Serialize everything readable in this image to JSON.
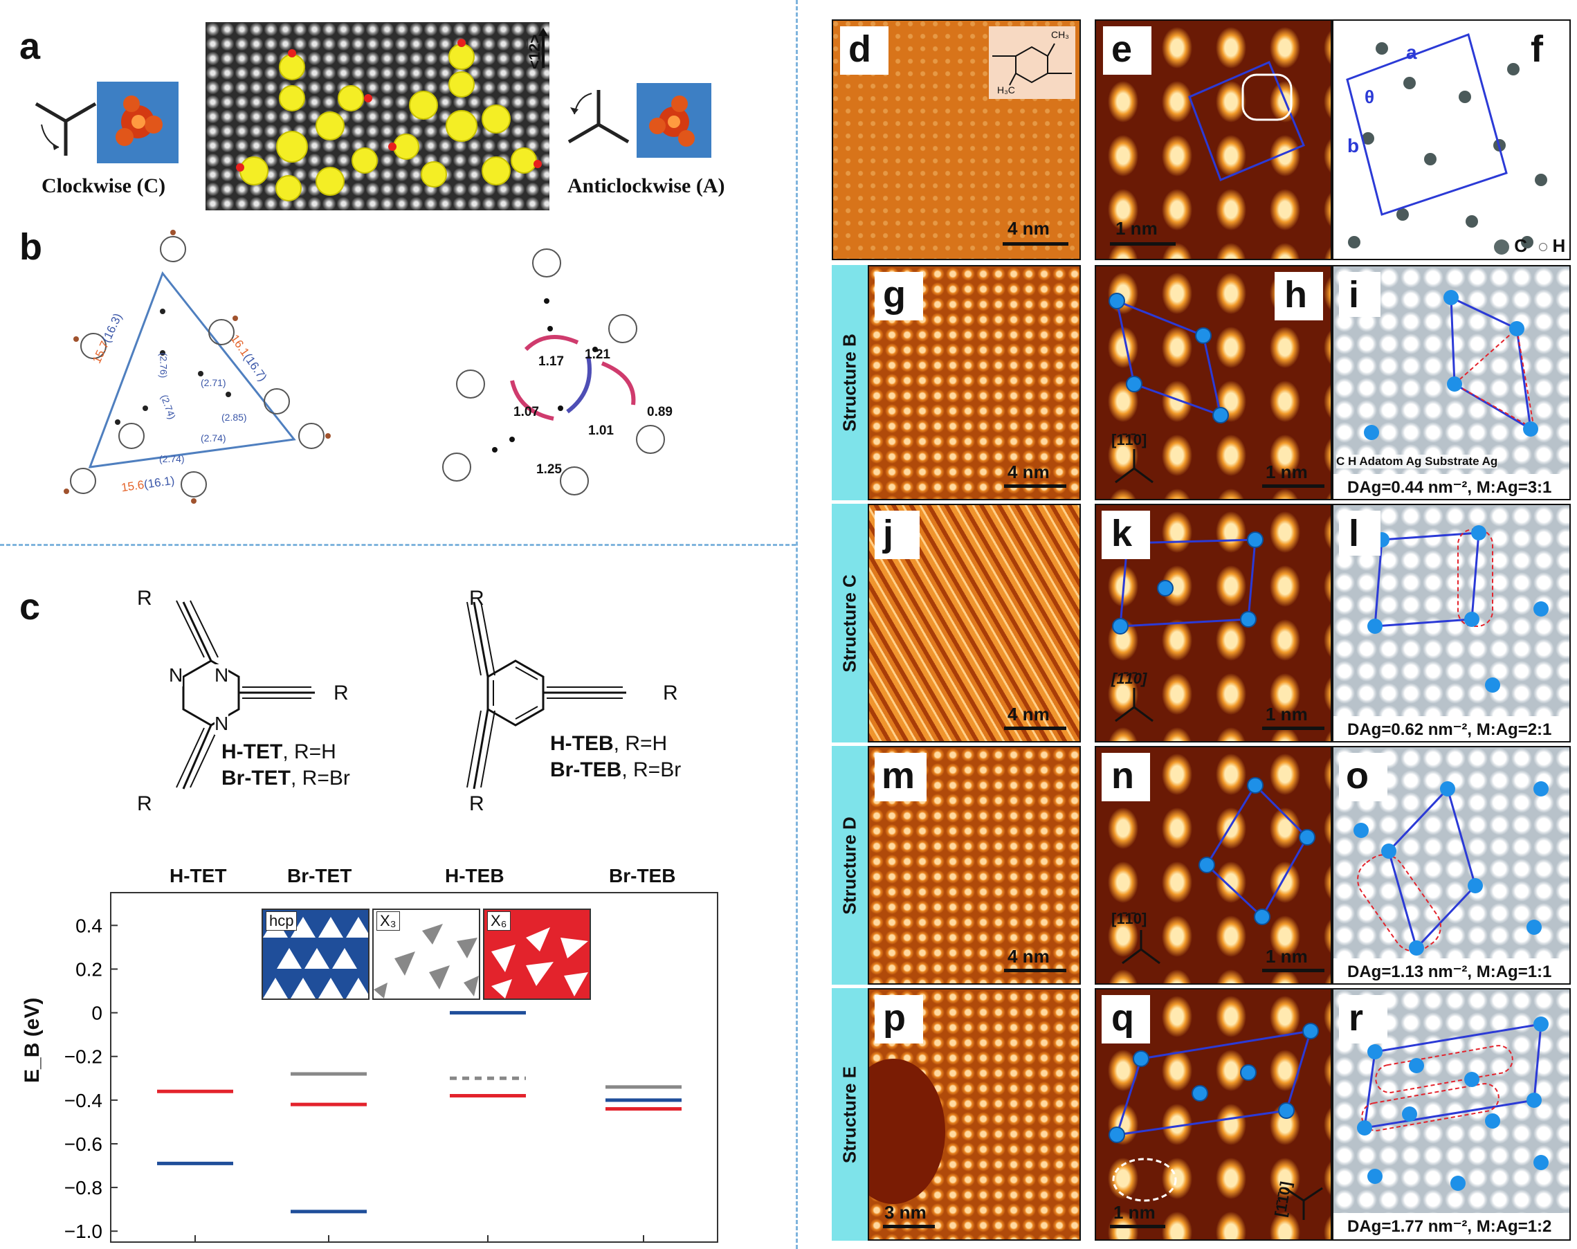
{
  "panel_labels": {
    "a": "a",
    "b": "b",
    "c": "c",
    "d": "d",
    "e": "e",
    "f": "f",
    "g": "g",
    "h": "h",
    "i": "i",
    "j": "j",
    "k": "k",
    "l": "l",
    "m": "m",
    "n": "n",
    "o": "o",
    "p": "p",
    "q": "q",
    "r": "r"
  },
  "panel_a": {
    "clockwise": "Clockwise (C)",
    "anticlockwise": "Anticlockwise (A)",
    "direction": "<12̅>"
  },
  "panel_b": {
    "left_lengths_red": [
      "15.7",
      "16.1",
      "15.6"
    ],
    "left_lengths_blue": [
      "(16.3)",
      "(16.7)",
      "(16.1)"
    ],
    "left_inner": [
      "(2.76)",
      "(2.71)",
      "(2.85)",
      "(2.74)",
      "(2.74)",
      "(2.74)"
    ],
    "right_values": [
      "1.17",
      "1.21",
      "0.89",
      "1.07",
      "1.01",
      "1.25"
    ]
  },
  "panel_c": {
    "left_mol_line1_bold": "H-TET",
    "left_mol_line1_rest": ", R=H",
    "left_mol_line2_bold": "Br-TET",
    "left_mol_line2_rest": ", R=Br",
    "right_mol_line1_bold": "H-TEB",
    "right_mol_line1_rest": ", R=H",
    "right_mol_line2_bold": "Br-TEB",
    "right_mol_line2_rest": ", R=Br",
    "atom_R": "R",
    "atom_N": "N",
    "inset_labels": [
      "hcp",
      "X₃",
      "X₆"
    ]
  },
  "chart_data": {
    "type": "line",
    "categories": [
      "H-TET",
      "Br-TET",
      "H-TEB",
      "Br-TEB"
    ],
    "ylabel": "E_B (eV)",
    "ylim": [
      -1.05,
      0.55
    ],
    "yticks": [
      0.4,
      0.2,
      0,
      -0.2,
      -0.4,
      -0.6,
      -0.8,
      -1.0
    ],
    "ytick_labels": [
      "0.4",
      "0.2",
      "0",
      "−0.2",
      "−0.4",
      "−0.6",
      "−0.8",
      "−1.0"
    ],
    "series": [
      {
        "name": "hcp",
        "color": "#1f4e9a",
        "values": [
          -0.69,
          -0.91,
          0.0,
          -0.4
        ]
      },
      {
        "name": "X₃",
        "color": "#888888",
        "values": [
          null,
          -0.28,
          -0.3,
          -0.34
        ]
      },
      {
        "name": "X₆",
        "color": "#e3232c",
        "values": [
          -0.36,
          -0.42,
          -0.38,
          -0.44
        ]
      }
    ],
    "dashed": [
      {
        "series": "X₃",
        "category": "H-TEB"
      }
    ]
  },
  "stm": {
    "scale_4nm": "4 nm",
    "scale_1nm": "1 nm",
    "scale_3nm": "3 nm",
    "direction": "[1̄1̄0]",
    "structures": [
      "Structure B",
      "Structure C",
      "Structure D",
      "Structure E"
    ]
  },
  "panel_f": {
    "a": "a",
    "b": "b",
    "theta": "θ",
    "legend_c": "C",
    "legend_h": "H"
  },
  "panel_e_mol": {
    "ch3_top": "CH₃",
    "ch3_bottom": "H₃C"
  },
  "panel_i": {
    "legend": "C  H  Adatom Ag  Substrate Ag",
    "caption": "Dₐg=0.44 nm⁻², M:Ag=3:1"
  },
  "captions": {
    "i": "DAg=0.44 nm⁻², M:Ag=3:1",
    "l": "DAg=0.62 nm⁻², M:Ag=2:1",
    "o": "DAg=1.13 nm⁻², M:Ag=1:1",
    "r": "DAg=1.77 nm⁻², M:Ag=1:2"
  },
  "colors": {
    "accent_blue": "#2b3ad6",
    "adatom": "#1e90e8",
    "dash": "#7fb4dd",
    "tab": "#7ee3ea",
    "stm": "#d8741a"
  }
}
